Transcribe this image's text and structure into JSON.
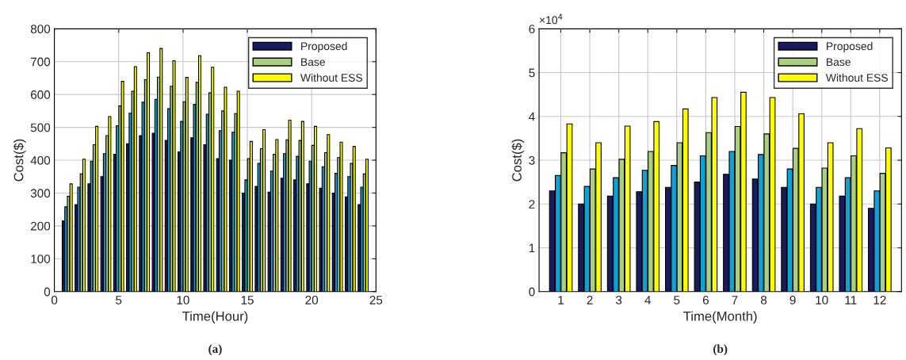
{
  "chart_data": [
    {
      "type": "bar",
      "xlabel": "Time(Hour)",
      "ylabel": "Cost($)",
      "annotations": [
        "(a)"
      ],
      "x": [
        1,
        2,
        3,
        4,
        5,
        6,
        7,
        8,
        9,
        10,
        11,
        12,
        13,
        14,
        15,
        16,
        17,
        18,
        19,
        20,
        21,
        22,
        23,
        24
      ],
      "xlim": [
        0,
        25
      ],
      "xticks": [
        0,
        5,
        10,
        15,
        20,
        25
      ],
      "ylim": [
        0,
        800
      ],
      "yticks": [
        0,
        100,
        200,
        300,
        400,
        500,
        600,
        700,
        800
      ],
      "grid": true,
      "legend": "top right",
      "series": [
        {
          "name": "Proposed",
          "color": "#1a1a5e",
          "values": [
            215,
            265,
            328,
            350,
            418,
            450,
            475,
            482,
            460,
            425,
            468,
            447,
            405,
            400,
            300,
            320,
            303,
            345,
            340,
            328,
            315,
            300,
            288,
            265
          ]
        },
        {
          "color": "#0aa3d6",
          "values": [
            258,
            318,
            397,
            420,
            505,
            543,
            577,
            585,
            557,
            518,
            570,
            540,
            490,
            485,
            340,
            390,
            367,
            420,
            412,
            397,
            380,
            360,
            350,
            318
          ]
        },
        {
          "name": "Base",
          "color": "#a9cf7f",
          "values": [
            290,
            358,
            447,
            475,
            565,
            610,
            645,
            653,
            625,
            578,
            637,
            605,
            550,
            542,
            405,
            435,
            418,
            462,
            460,
            445,
            423,
            408,
            390,
            358
          ]
        },
        {
          "name": "Without ESS",
          "color": "#ffff00",
          "values": [
            328,
            403,
            503,
            533,
            640,
            685,
            727,
            740,
            703,
            652,
            718,
            683,
            622,
            610,
            457,
            493,
            463,
            522,
            518,
            503,
            478,
            455,
            442,
            403
          ]
        }
      ]
    },
    {
      "type": "bar",
      "xlabel": "Time(Month)",
      "ylabel": "Cost($)",
      "annotations": [
        "(b)",
        "×10$^{4}$"
      ],
      "categories": [
        "1",
        "2",
        "3",
        "4",
        "5",
        "6",
        "7",
        "8",
        "9",
        "10",
        "11",
        "12"
      ],
      "ylim": [
        0,
        6
      ],
      "yticks": [
        0,
        1,
        2,
        3,
        4,
        5,
        6
      ],
      "grid": true,
      "legend": "top right",
      "series": [
        {
          "name": "Proposed",
          "color": "#1a1a5e",
          "values": [
            2.3,
            2.0,
            2.18,
            2.28,
            2.38,
            2.5,
            2.68,
            2.57,
            2.38,
            2.0,
            2.18,
            1.9
          ]
        },
        {
          "color": "#0aa3d6",
          "values": [
            2.65,
            2.4,
            2.6,
            2.77,
            2.88,
            3.1,
            3.2,
            3.13,
            2.8,
            2.38,
            2.6,
            2.3
          ]
        },
        {
          "name": "Base",
          "color": "#a9cf7f",
          "values": [
            3.17,
            2.8,
            3.02,
            3.2,
            3.4,
            3.63,
            3.77,
            3.6,
            3.27,
            2.82,
            3.1,
            2.7
          ]
        },
        {
          "name": "Without ESS",
          "color": "#ffff00",
          "values": [
            3.83,
            3.4,
            3.78,
            3.88,
            4.17,
            4.43,
            4.55,
            4.43,
            4.06,
            3.4,
            3.72,
            3.28
          ]
        }
      ]
    }
  ]
}
